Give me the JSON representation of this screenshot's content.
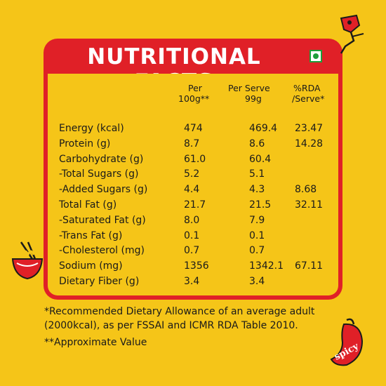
{
  "header": {
    "title": "NUTRITIONAL FACTS",
    "veg_icon": "veg-symbol-icon"
  },
  "columns": {
    "per100_line1": "Per",
    "per100_line2": "100g**",
    "perserve_line1": "Per Serve",
    "perserve_line2": "99g",
    "rda_line1": "%RDA",
    "rda_line2": "/Serve*"
  },
  "rows": [
    {
      "nutrient": "Energy (kcal)",
      "per100": "474",
      "perserve": "469.4",
      "rda": "23.47"
    },
    {
      "nutrient": "Protein (g)",
      "per100": "8.7",
      "perserve": "8.6",
      "rda": "14.28"
    },
    {
      "nutrient": "Carbohydrate (g)",
      "per100": "61.0",
      "perserve": "60.4",
      "rda": ""
    },
    {
      "nutrient": "-Total Sugars (g)",
      "per100": "5.2",
      "perserve": "5.1",
      "rda": ""
    },
    {
      "nutrient": "-Added Sugars (g)",
      "per100": "4.4",
      "perserve": "4.3",
      "rda": "8.68"
    },
    {
      "nutrient": "Total Fat (g)",
      "per100": "21.7",
      "perserve": "21.5",
      "rda": "32.11"
    },
    {
      "nutrient": "-Saturated Fat (g)",
      "per100": "8.0",
      "perserve": "7.9",
      "rda": ""
    },
    {
      "nutrient": "-Trans Fat (g)",
      "per100": "0.1",
      "perserve": "0.1",
      "rda": ""
    },
    {
      "nutrient": "-Cholesterol (mg)",
      "per100": "0.7",
      "perserve": "0.7",
      "rda": ""
    },
    {
      "nutrient": "Sodium (mg)",
      "per100": "1356",
      "perserve": "1342.1",
      "rda": "67.11"
    },
    {
      "nutrient": "Dietary Fiber (g)",
      "per100": "3.4",
      "perserve": "3.4",
      "rda": ""
    }
  ],
  "footnote": {
    "line1": "*Recommended Dietary Allowance of an average adult",
    "line2": "(2000kcal), as per FSSAI and ICMR RDA Table 2010.",
    "line3": "**Approximate Value"
  },
  "decorations": {
    "top_right": "chili-mascot-icon",
    "left": "noodle-bowl-icon",
    "bottom_right": "chili-pepper-icon",
    "bottom_right_label": "spicy"
  },
  "colors": {
    "background": "#F5C518",
    "panel": "#E02027",
    "text": "#1A1A1A",
    "veg_green": "#1E9E3A"
  }
}
